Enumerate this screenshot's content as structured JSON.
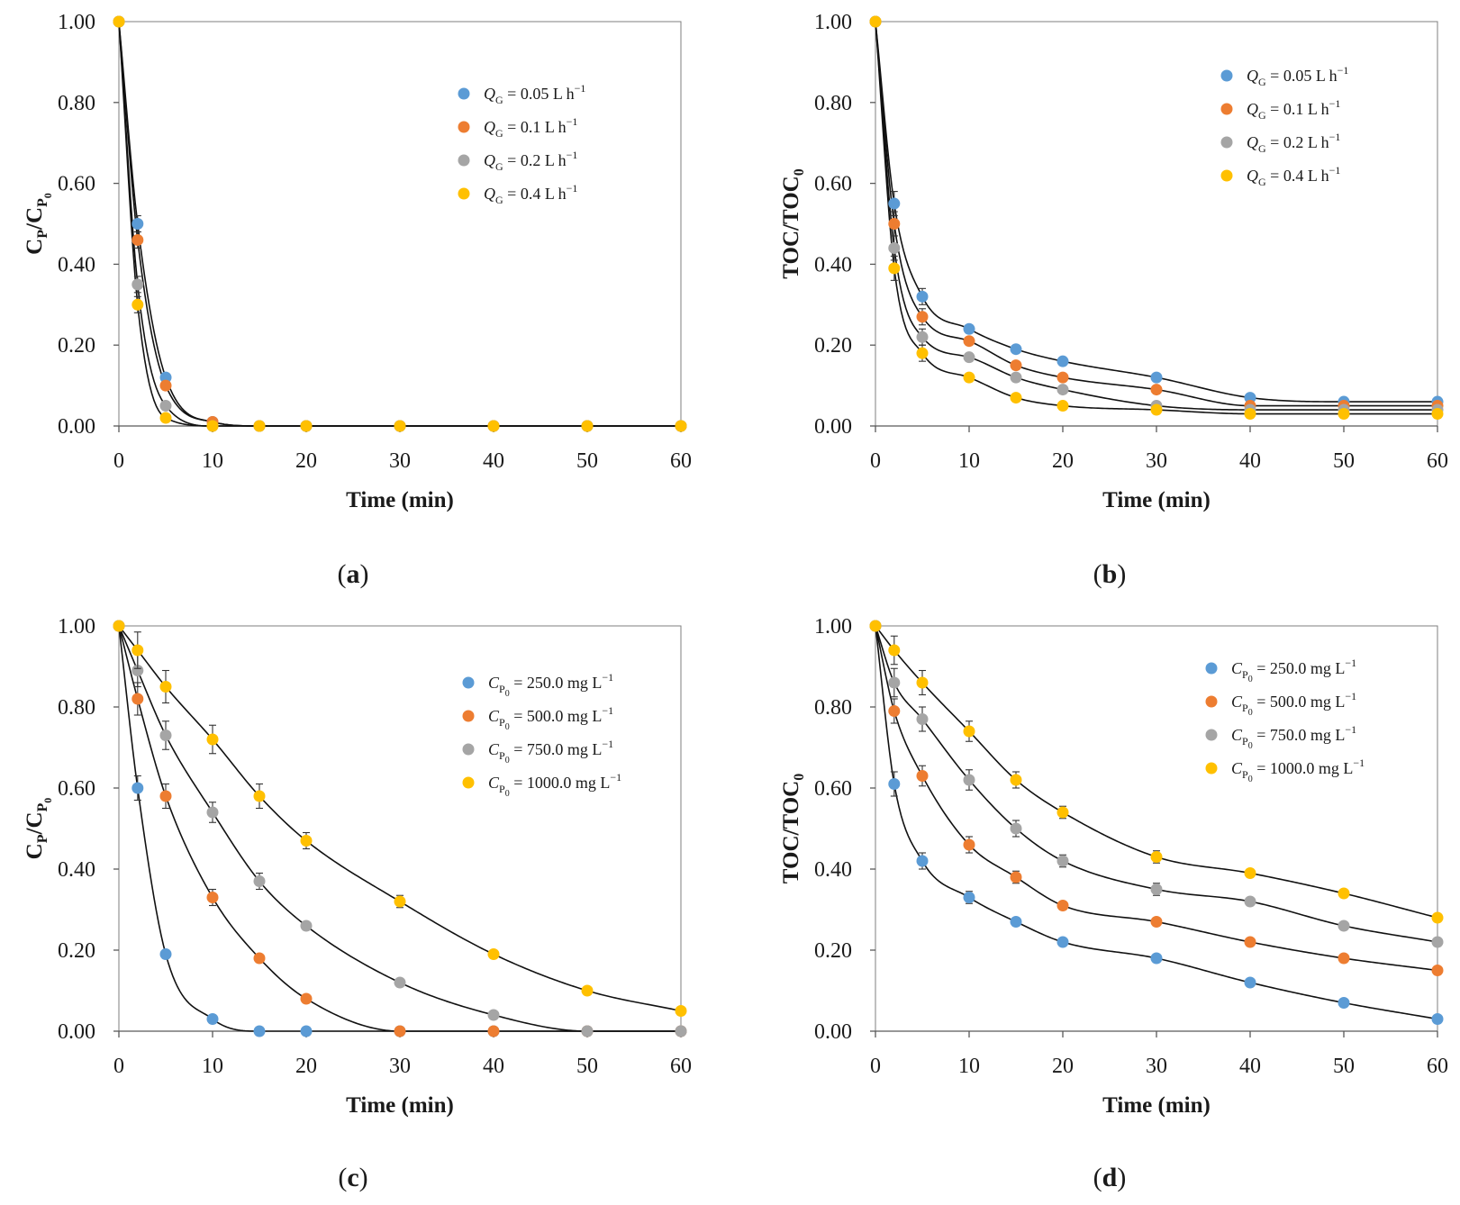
{
  "chart_data": [
    {
      "type": "scatter",
      "panel": "a",
      "panel_label": "(a)",
      "xlabel": "Time (min)",
      "ylabel": "CP/CP0",
      "ylabel_parts": [
        "C",
        "P",
        "/C",
        "P",
        "0"
      ],
      "xlim": [
        0,
        60
      ],
      "ylim": [
        0,
        1
      ],
      "x_ticks": [
        0,
        10,
        20,
        30,
        40,
        50,
        60
      ],
      "y_ticks": [
        "0.00",
        "0.20",
        "0.40",
        "0.60",
        "0.80",
        "1.00"
      ],
      "legend_position": "upper-right",
      "x": [
        0,
        2,
        5,
        10,
        15,
        20,
        30,
        40,
        50,
        60
      ],
      "series": [
        {
          "name": "QG = 0.05 L h−1",
          "legend_parts": [
            "Q",
            "G",
            " = 0.05 L h",
            "−1"
          ],
          "color": "#5b9bd5",
          "values": [
            1.0,
            0.5,
            0.12,
            0.01,
            0.0,
            0.0,
            0.0,
            0.0,
            0.0,
            0.0
          ],
          "errors": [
            0.01,
            0.02,
            0.01,
            0,
            0,
            0,
            0,
            0,
            0,
            0
          ]
        },
        {
          "name": "QG = 0.1 L h−1",
          "legend_parts": [
            "Q",
            "G",
            " = 0.1 L h",
            "−1"
          ],
          "color": "#ed7d31",
          "values": [
            1.0,
            0.46,
            0.1,
            0.01,
            0.0,
            0.0,
            0.0,
            0.0,
            0.0,
            0.0
          ],
          "errors": [
            0.01,
            0.02,
            0.01,
            0,
            0,
            0,
            0,
            0,
            0,
            0
          ]
        },
        {
          "name": "QG = 0.2 L h−1",
          "legend_parts": [
            "Q",
            "G",
            " = 0.2 L h",
            "−1"
          ],
          "color": "#a5a5a5",
          "values": [
            1.0,
            0.35,
            0.05,
            0.0,
            0.0,
            0.0,
            0.0,
            0.0,
            0.0,
            0.0
          ],
          "errors": [
            0.01,
            0.02,
            0.01,
            0,
            0,
            0,
            0,
            0,
            0,
            0
          ]
        },
        {
          "name": "QG = 0.4 L h−1",
          "legend_parts": [
            "Q",
            "G",
            " = 0.4 L h",
            "−1"
          ],
          "color": "#ffc000",
          "values": [
            1.0,
            0.3,
            0.02,
            0.0,
            0.0,
            0.0,
            0.0,
            0.0,
            0.0,
            0.0
          ],
          "errors": [
            0.01,
            0.02,
            0.01,
            0,
            0,
            0,
            0,
            0,
            0,
            0
          ]
        }
      ]
    },
    {
      "type": "scatter",
      "panel": "b",
      "panel_label": "(b)",
      "xlabel": "Time (min)",
      "ylabel": "TOC/TOC0",
      "ylabel_parts": [
        "TOC/TOC",
        "0"
      ],
      "xlim": [
        0,
        60
      ],
      "ylim": [
        0,
        1
      ],
      "x_ticks": [
        0,
        10,
        20,
        30,
        40,
        50,
        60
      ],
      "y_ticks": [
        "0.00",
        "0.20",
        "0.40",
        "0.60",
        "0.80",
        "1.00"
      ],
      "legend_position": "upper-right",
      "x": [
        0,
        2,
        5,
        10,
        15,
        20,
        30,
        40,
        50,
        60
      ],
      "series": [
        {
          "name": "QG = 0.05 L h−1",
          "legend_parts": [
            "Q",
            "G",
            " = 0.05 L h",
            "−1"
          ],
          "color": "#5b9bd5",
          "values": [
            1.0,
            0.55,
            0.32,
            0.24,
            0.19,
            0.16,
            0.12,
            0.07,
            0.06,
            0.06
          ],
          "errors": [
            0.01,
            0.03,
            0.02,
            0.01,
            0.01,
            0.01,
            0.01,
            0.01,
            0.01,
            0.01
          ]
        },
        {
          "name": "QG = 0.1 L h−1",
          "legend_parts": [
            "Q",
            "G",
            " = 0.1 L h",
            "−1"
          ],
          "color": "#ed7d31",
          "values": [
            1.0,
            0.5,
            0.27,
            0.21,
            0.15,
            0.12,
            0.09,
            0.05,
            0.05,
            0.05
          ],
          "errors": [
            0.01,
            0.03,
            0.02,
            0.01,
            0.01,
            0.01,
            0.01,
            0.01,
            0.01,
            0.01
          ]
        },
        {
          "name": "QG = 0.2 L h−1",
          "legend_parts": [
            "Q",
            "G",
            " = 0.2 L h",
            "−1"
          ],
          "color": "#a5a5a5",
          "values": [
            1.0,
            0.44,
            0.22,
            0.17,
            0.12,
            0.09,
            0.05,
            0.04,
            0.04,
            0.04
          ],
          "errors": [
            0.01,
            0.03,
            0.02,
            0.01,
            0.01,
            0.01,
            0.01,
            0.01,
            0.01,
            0.01
          ]
        },
        {
          "name": "QG = 0.4 L h−1",
          "legend_parts": [
            "Q",
            "G",
            " = 0.4 L h",
            "−1"
          ],
          "color": "#ffc000",
          "values": [
            1.0,
            0.39,
            0.18,
            0.12,
            0.07,
            0.05,
            0.04,
            0.03,
            0.03,
            0.03
          ],
          "errors": [
            0.01,
            0.03,
            0.02,
            0.01,
            0.01,
            0.01,
            0.01,
            0.01,
            0.01,
            0.01
          ]
        }
      ]
    },
    {
      "type": "scatter",
      "panel": "c",
      "panel_label": "(c)",
      "xlabel": "Time (min)",
      "ylabel": "CP/CP0",
      "ylabel_parts": [
        "C",
        "P",
        "/C",
        "P",
        "0"
      ],
      "xlim": [
        0,
        60
      ],
      "ylim": [
        0,
        1
      ],
      "x_ticks": [
        0,
        10,
        20,
        30,
        40,
        50,
        60
      ],
      "y_ticks": [
        "0.00",
        "0.20",
        "0.40",
        "0.60",
        "0.80",
        "1.00"
      ],
      "legend_position": "upper-right",
      "x": [
        0,
        2,
        5,
        10,
        15,
        20,
        30,
        40,
        50,
        60
      ],
      "series": [
        {
          "name": "CP0 = 250.0 mg L−1",
          "legend_parts": [
            "C",
            "P",
            "0",
            " = 250.0 mg L",
            "−1"
          ],
          "color": "#5b9bd5",
          "values": [
            1.0,
            0.6,
            0.19,
            0.03,
            0.0,
            0.0,
            0.0,
            0.0,
            0.0,
            0.0
          ],
          "errors": [
            0.01,
            0.03,
            0.01,
            0.01,
            0,
            0,
            0,
            0,
            0,
            0
          ]
        },
        {
          "name": "CP0 = 500.0 mg L−1",
          "legend_parts": [
            "C",
            "P",
            "0",
            " = 500.0 mg L",
            "−1"
          ],
          "color": "#ed7d31",
          "values": [
            1.0,
            0.82,
            0.58,
            0.33,
            0.18,
            0.08,
            0.0,
            0.0,
            0.0,
            0.0
          ],
          "errors": [
            0.01,
            0.04,
            0.03,
            0.02,
            0.01,
            0.01,
            0,
            0,
            0,
            0
          ]
        },
        {
          "name": "CP0 = 750.0 mg L−1",
          "legend_parts": [
            "C",
            "P",
            "0",
            " = 750.0 mg L",
            "−1"
          ],
          "color": "#a5a5a5",
          "values": [
            1.0,
            0.89,
            0.73,
            0.54,
            0.37,
            0.26,
            0.12,
            0.04,
            0.0,
            0.0
          ],
          "errors": [
            0.01,
            0.04,
            0.035,
            0.025,
            0.02,
            0.01,
            0.01,
            0,
            0,
            0
          ]
        },
        {
          "name": "CP0 = 1000.0 mg L−1",
          "legend_parts": [
            "C",
            "P",
            "0",
            " = 1000.0 mg L",
            "−1"
          ],
          "color": "#ffc000",
          "values": [
            1.0,
            0.94,
            0.85,
            0.72,
            0.58,
            0.47,
            0.32,
            0.19,
            0.1,
            0.05
          ],
          "errors": [
            0.01,
            0.045,
            0.04,
            0.035,
            0.03,
            0.02,
            0.015,
            0,
            0,
            0
          ]
        }
      ]
    },
    {
      "type": "scatter",
      "panel": "d",
      "panel_label": "(d)",
      "xlabel": "Time (min)",
      "ylabel": "TOC/TOC0",
      "ylabel_parts": [
        "TOC/TOC",
        "0"
      ],
      "xlim": [
        0,
        60
      ],
      "ylim": [
        0,
        1
      ],
      "x_ticks": [
        0,
        10,
        20,
        30,
        40,
        50,
        60
      ],
      "y_ticks": [
        "0.00",
        "0.20",
        "0.40",
        "0.60",
        "0.80",
        "1.00"
      ],
      "legend_position": "upper-right",
      "x": [
        0,
        2,
        5,
        10,
        15,
        20,
        30,
        40,
        50,
        60
      ],
      "series": [
        {
          "name": "CP0 = 250.0 mg L−1",
          "legend_parts": [
            "C",
            "P",
            "0",
            " = 250.0 mg L",
            "−1"
          ],
          "color": "#5b9bd5",
          "values": [
            1.0,
            0.61,
            0.42,
            0.33,
            0.27,
            0.22,
            0.18,
            0.12,
            0.07,
            0.03
          ],
          "errors": [
            0.01,
            0.03,
            0.02,
            0.015,
            0.01,
            0,
            0,
            0,
            0,
            0
          ]
        },
        {
          "name": "CP0 = 500.0 mg L−1",
          "legend_parts": [
            "C",
            "P",
            "0",
            " = 500.0 mg L",
            "−1"
          ],
          "color": "#ed7d31",
          "values": [
            1.0,
            0.79,
            0.63,
            0.46,
            0.38,
            0.31,
            0.27,
            0.22,
            0.18,
            0.15
          ],
          "errors": [
            0.01,
            0.03,
            0.025,
            0.02,
            0.015,
            0.01,
            0,
            0,
            0,
            0
          ]
        },
        {
          "name": "CP0 = 750.0 mg L−1",
          "legend_parts": [
            "C",
            "P",
            "0",
            " = 750.0 mg L",
            "−1"
          ],
          "color": "#a5a5a5",
          "values": [
            1.0,
            0.86,
            0.77,
            0.62,
            0.5,
            0.42,
            0.35,
            0.32,
            0.26,
            0.22
          ],
          "errors": [
            0.01,
            0.035,
            0.03,
            0.025,
            0.02,
            0.015,
            0.015,
            0.01,
            0,
            0
          ]
        },
        {
          "name": "CP0 = 1000.0 mg L−1",
          "legend_parts": [
            "C",
            "P",
            "0",
            " = 1000.0 mg L",
            "−1"
          ],
          "color": "#ffc000",
          "values": [
            1.0,
            0.94,
            0.86,
            0.74,
            0.62,
            0.54,
            0.43,
            0.39,
            0.34,
            0.28
          ],
          "errors": [
            0.01,
            0.035,
            0.03,
            0.025,
            0.02,
            0.015,
            0.015,
            0.01,
            0,
            0
          ]
        }
      ]
    }
  ]
}
